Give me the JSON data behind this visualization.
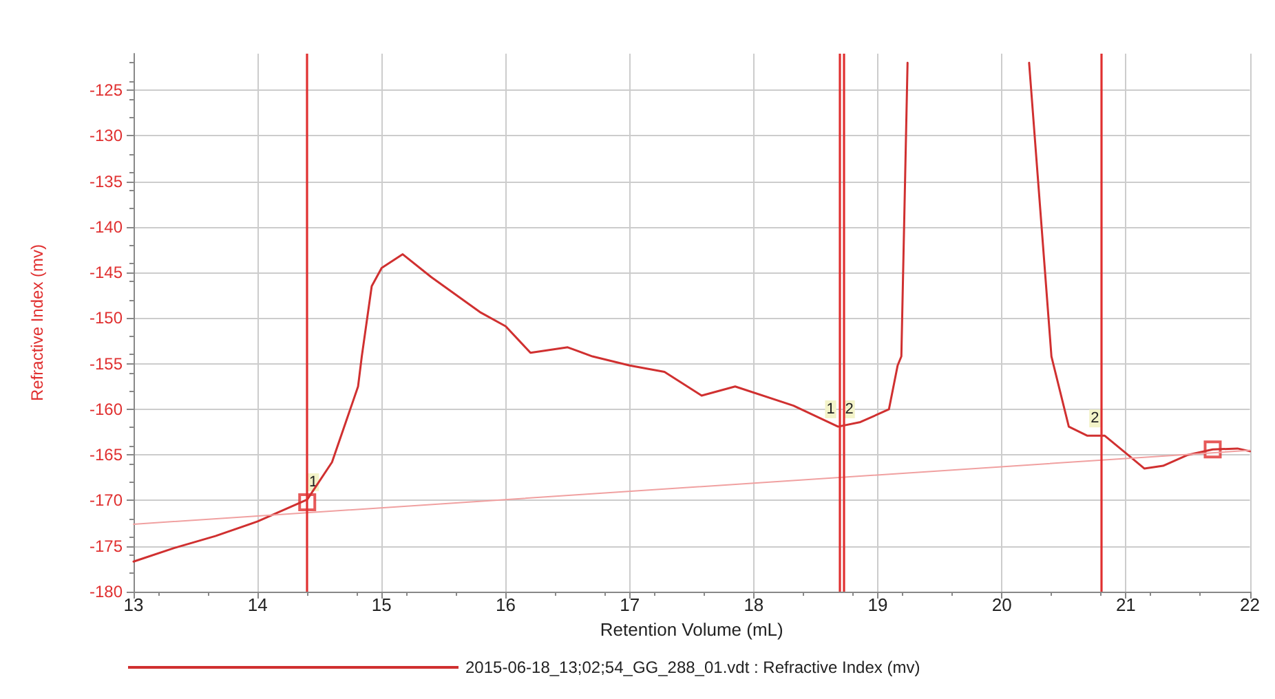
{
  "chart_data": {
    "type": "line",
    "xlabel": "Retention Volume (mL)",
    "ylabel": "Refractive Index (mv)",
    "xlim": [
      13,
      22
    ],
    "xticks": [
      13,
      14,
      15,
      16,
      17,
      18,
      19,
      20,
      21,
      22
    ],
    "ylim": [
      -180,
      -121
    ],
    "yticks": [
      -180,
      -175,
      -170,
      -165,
      -160,
      -155,
      -150,
      -145,
      -140,
      -135,
      -130,
      -125
    ],
    "grid": true,
    "legend": "bottom",
    "marker": "none",
    "line_style": "solid",
    "series": [
      {
        "name": "2015-06-18_13;02;54_GG_288_01.vdt : Refractive Index (mv)",
        "color": "#d03030",
        "x": [
          13,
          13.33,
          13.66,
          14.0,
          14.4,
          14.6,
          14.81,
          14.84,
          14.92,
          15.0,
          15.17,
          15.4,
          15.8,
          16.0,
          16.2,
          16.5,
          16.7,
          17.0,
          17.28,
          17.58,
          17.85,
          18.32,
          18.68,
          18.86,
          19.09,
          19.16,
          19.19,
          19.24,
          19.7,
          20.22,
          20.4,
          20.54,
          20.69,
          20.83,
          21.0,
          21.15,
          21.3,
          21.5,
          21.7,
          21.9,
          22
        ],
        "values": [
          -176.7,
          -175.2,
          -173.9,
          -172.3,
          -169.9,
          -165.8,
          -157.5,
          -154.2,
          -146.5,
          -144.5,
          -143.0,
          -145.5,
          -149.4,
          -150.9,
          -153.8,
          -153.2,
          -154.2,
          -155.2,
          -155.9,
          -158.5,
          -157.5,
          -159.6,
          -161.9,
          -161.4,
          -160.0,
          -155.2,
          -154.2,
          -122,
          null,
          -122,
          -154.2,
          -161.9,
          -162.9,
          -162.9,
          -164.8,
          -166.5,
          -166.2,
          -165.0,
          -164.4,
          -164.3,
          -164.6
        ]
      },
      {
        "type": "line",
        "color": "#f0a0a0",
        "x": [
          13,
          22
        ],
        "values": [
          -172.6,
          -164.5
        ]
      },
      {
        "type": "scatter",
        "marker": "square",
        "color": "#e03030",
        "x": [
          14.4,
          21.7
        ],
        "values": [
          -170.2,
          -164.4
        ]
      }
    ],
    "ref_lines": [
      {
        "axis": "x",
        "value": 14.4,
        "color": "#e03030"
      },
      {
        "axis": "x",
        "value": 18.69,
        "color": "#e03030"
      },
      {
        "axis": "x",
        "value": 18.73,
        "color": "#e03030"
      },
      {
        "axis": "x",
        "value": 20.8,
        "color": "#e03030"
      }
    ],
    "annotations": [
      {
        "text": "1",
        "x": 14.45,
        "y": -168
      },
      {
        "text": "1",
        "x": 18.62,
        "y": -160
      },
      {
        "text": "2",
        "x": 18.77,
        "y": -160
      },
      {
        "text": "2",
        "x": 20.75,
        "y": -161
      }
    ]
  }
}
